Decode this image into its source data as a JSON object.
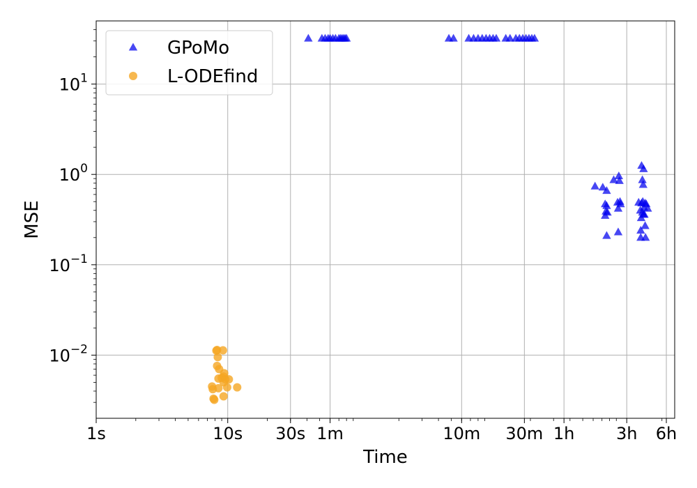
{
  "chart_data": {
    "type": "scatter",
    "title": "",
    "xlabel": "Time",
    "ylabel": "MSE",
    "x_scale": "log",
    "y_scale": "log",
    "x_unit": "seconds",
    "xlim": [
      1,
      25000
    ],
    "ylim": [
      0.002,
      50
    ],
    "grid": true,
    "legend_position": "top-left",
    "x_ticks": [
      {
        "value": 1,
        "label": "1s"
      },
      {
        "value": 10,
        "label": "10s"
      },
      {
        "value": 30,
        "label": "30s"
      },
      {
        "value": 60,
        "label": "1m"
      },
      {
        "value": 600,
        "label": "10m"
      },
      {
        "value": 1800,
        "label": "30m"
      },
      {
        "value": 3600,
        "label": "1h"
      },
      {
        "value": 10800,
        "label": "3h"
      },
      {
        "value": 21600,
        "label": "6h"
      }
    ],
    "y_ticks": [
      {
        "value": 0.01,
        "base": "10",
        "exp": "−2"
      },
      {
        "value": 0.1,
        "base": "10",
        "exp": "−1"
      },
      {
        "value": 1,
        "base": "10",
        "exp": "0"
      },
      {
        "value": 10,
        "base": "10",
        "exp": "1"
      }
    ],
    "series": [
      {
        "name": "GPoMo",
        "marker": "triangle",
        "color": "#0000ee",
        "points": [
          [
            41,
            32
          ],
          [
            52,
            32
          ],
          [
            55,
            32
          ],
          [
            58,
            32
          ],
          [
            60,
            32
          ],
          [
            63,
            32
          ],
          [
            66,
            32
          ],
          [
            70,
            32
          ],
          [
            72,
            32
          ],
          [
            74,
            32
          ],
          [
            76,
            32
          ],
          [
            78,
            32
          ],
          [
            80,
            32
          ],
          [
            480,
            32
          ],
          [
            520,
            32
          ],
          [
            680,
            32
          ],
          [
            740,
            32
          ],
          [
            800,
            32
          ],
          [
            860,
            32
          ],
          [
            920,
            32
          ],
          [
            980,
            32
          ],
          [
            1040,
            32
          ],
          [
            1100,
            32
          ],
          [
            1300,
            32
          ],
          [
            1400,
            32
          ],
          [
            1550,
            32
          ],
          [
            1650,
            32
          ],
          [
            1750,
            32
          ],
          [
            1850,
            32
          ],
          [
            1950,
            32
          ],
          [
            2050,
            32
          ],
          [
            2150,
            32
          ],
          [
            6200,
            0.74
          ],
          [
            7100,
            0.72
          ],
          [
            7600,
            0.66
          ],
          [
            7400,
            0.47
          ],
          [
            7600,
            0.45
          ],
          [
            7500,
            0.39
          ],
          [
            7400,
            0.35
          ],
          [
            7700,
            0.38
          ],
          [
            7600,
            0.21
          ],
          [
            8600,
            0.87
          ],
          [
            9400,
            0.96
          ],
          [
            9500,
            0.85
          ],
          [
            9200,
            0.49
          ],
          [
            9600,
            0.5
          ],
          [
            9700,
            0.47
          ],
          [
            9300,
            0.42
          ],
          [
            9300,
            0.23
          ],
          [
            14000,
            1.25
          ],
          [
            14500,
            1.15
          ],
          [
            14200,
            0.87
          ],
          [
            14400,
            0.77
          ],
          [
            13300,
            0.49
          ],
          [
            14000,
            0.48
          ],
          [
            14300,
            0.5
          ],
          [
            14900,
            0.48
          ],
          [
            15200,
            0.47
          ],
          [
            15600,
            0.42
          ],
          [
            13700,
            0.4
          ],
          [
            14200,
            0.38
          ],
          [
            14500,
            0.36
          ],
          [
            13900,
            0.33
          ],
          [
            14700,
            0.36
          ],
          [
            13800,
            0.24
          ],
          [
            14900,
            0.27
          ],
          [
            13800,
            0.2
          ],
          [
            15000,
            0.2
          ],
          [
            14600,
            0.43
          ]
        ]
      },
      {
        "name": "L-ODEfind",
        "marker": "circle",
        "color": "#f5a623",
        "points": [
          [
            8.3,
            0.0114
          ],
          [
            8.2,
            0.0112
          ],
          [
            9.2,
            0.0113
          ],
          [
            8.4,
            0.0095
          ],
          [
            8.3,
            0.0076
          ],
          [
            8.6,
            0.007
          ],
          [
            9.4,
            0.0063
          ],
          [
            9.3,
            0.0058
          ],
          [
            8.5,
            0.0055
          ],
          [
            9.0,
            0.0056
          ],
          [
            9.6,
            0.0054
          ],
          [
            10.2,
            0.0054
          ],
          [
            9.3,
            0.005
          ],
          [
            7.6,
            0.0045
          ],
          [
            7.7,
            0.0042
          ],
          [
            8.5,
            0.0043
          ],
          [
            9.9,
            0.0044
          ],
          [
            11.8,
            0.0044
          ],
          [
            7.8,
            0.0033
          ],
          [
            7.9,
            0.0032
          ],
          [
            9.3,
            0.0035
          ]
        ]
      }
    ]
  }
}
